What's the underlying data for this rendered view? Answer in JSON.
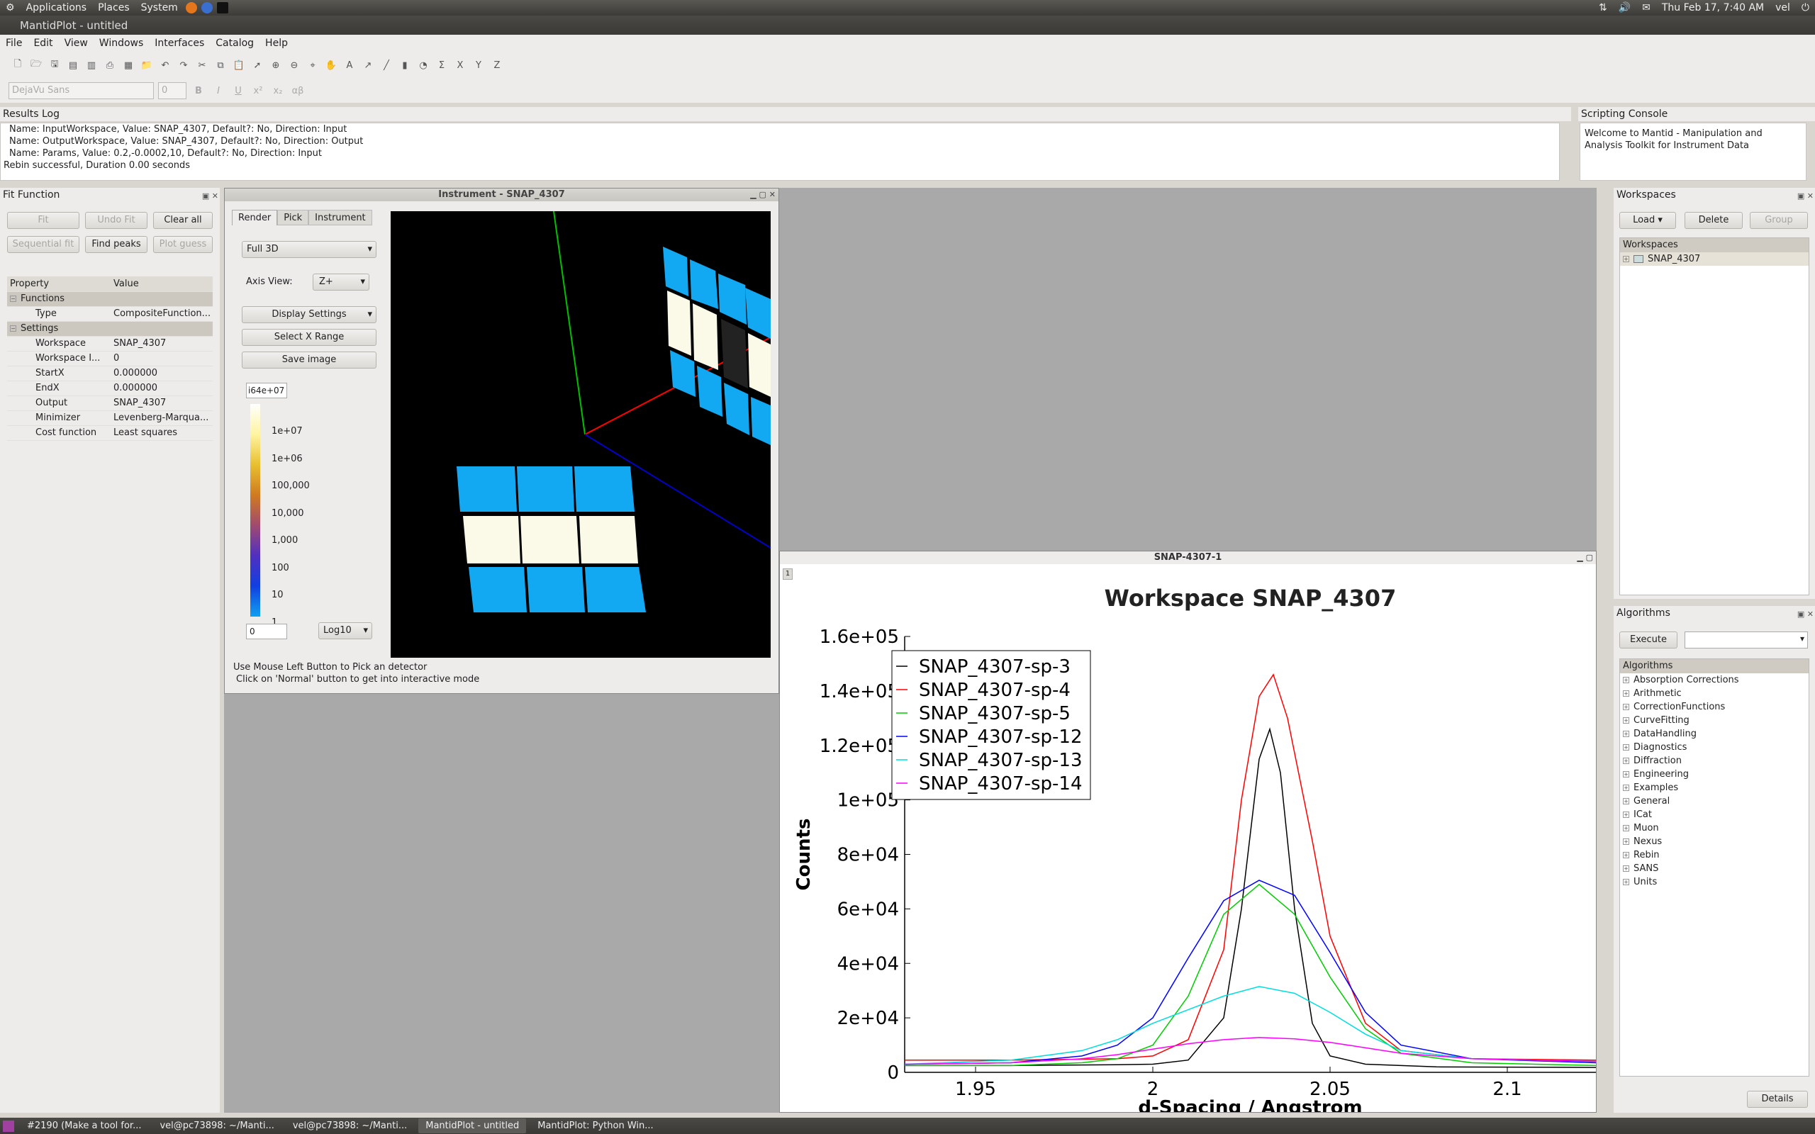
{
  "gnome_panel": {
    "menus": [
      "Applications",
      "Places",
      "System"
    ],
    "datetime": "Thu Feb 17,  7:40 AM",
    "user": "vel"
  },
  "window_title": "MantidPlot - untitled",
  "menubar": [
    "File",
    "Edit",
    "View",
    "Windows",
    "Interfaces",
    "Catalog",
    "Help"
  ],
  "format_toolbar": {
    "font": "DejaVu Sans",
    "size": "0"
  },
  "results_log": {
    "title": "Results Log",
    "lines": [
      "Name: InputWorkspace, Value: SNAP_4307, Default?: No, Direction: Input",
      "Name: OutputWorkspace, Value: SNAP_4307, Default?: No, Direction: Output",
      "Name: Params, Value: 0.2,-0.0002,10, Default?: No, Direction: Input",
      "Rebin successful, Duration 0.00 seconds"
    ]
  },
  "scripting_console": {
    "title": "Scripting Console",
    "text": "Welcome to Mantid - Manipulation and Analysis Toolkit for Instrument Data"
  },
  "fit_function": {
    "title": "Fit Function",
    "buttons": {
      "fit": "Fit",
      "undo_fit": "Undo Fit",
      "clear_all": "Clear all",
      "sequential_fit": "Sequential fit",
      "find_peaks": "Find peaks",
      "plot_guess": "Plot guess"
    },
    "table_headers": [
      "Property",
      "Value"
    ],
    "groups": {
      "functions": "Functions",
      "settings": "Settings"
    },
    "functions_rows": [
      {
        "name": "Type",
        "value": "CompositeFunction..."
      }
    ],
    "settings_rows": [
      {
        "name": "Workspace",
        "value": "SNAP_4307"
      },
      {
        "name": "Workspace I...",
        "value": "0"
      },
      {
        "name": "StartX",
        "value": "0.000000"
      },
      {
        "name": "EndX",
        "value": "0.000000"
      },
      {
        "name": "Output",
        "value": "SNAP_4307"
      },
      {
        "name": "Minimizer",
        "value": "Levenberg-Marqua..."
      },
      {
        "name": "Cost function",
        "value": "Least squares"
      }
    ]
  },
  "instrument_window": {
    "title": "Instrument - SNAP_4307",
    "tabs": [
      "Render",
      "Pick",
      "Instrument"
    ],
    "render_mode": "Full 3D",
    "axis_view_label": "Axis View:",
    "axis_view": "Z+",
    "display_settings": "Display Settings",
    "select_x_range": "Select X Range",
    "save_image": "Save image",
    "color_max": "i64e+07",
    "color_min": "0",
    "scale_type": "Log10",
    "colorbar_ticks": [
      "1e+07",
      "1e+06",
      "100,000",
      "10,000",
      "1,000",
      "100",
      "10",
      "1"
    ],
    "hint1": "Use Mouse Left Button to Pick an detector",
    "hint2": "Click on 'Normal' button to get into interactive mode"
  },
  "plot_window": {
    "title": "SNAP-4307-1",
    "layer": "1"
  },
  "chart_data": {
    "type": "line",
    "title": "Workspace SNAP_4307",
    "xlabel": "d-Spacing / Angstrom",
    "ylabel": "Counts",
    "xlim": [
      1.93,
      2.125
    ],
    "ylim": [
      0,
      160000
    ],
    "x_ticks": [
      1.95,
      2,
      2.05,
      2.1
    ],
    "x_tick_labels": [
      "1.95",
      "2",
      "2.05",
      "2.1"
    ],
    "y_ticks": [
      0,
      20000,
      40000,
      60000,
      80000,
      100000,
      120000,
      140000,
      160000
    ],
    "y_tick_labels": [
      "0",
      "2e+04",
      "4e+04",
      "6e+04",
      "8e+04",
      "1e+05",
      "1.2e+05",
      "1.4e+05",
      "1.6e+05"
    ],
    "legend_position": "top-left",
    "series": [
      {
        "name": "SNAP_4307-sp-3",
        "color": "#000000",
        "x": [
          1.93,
          1.96,
          1.99,
          2.0,
          2.01,
          2.02,
          2.025,
          2.03,
          2.033,
          2.036,
          2.04,
          2.045,
          2.05,
          2.06,
          2.08,
          2.125
        ],
        "y": [
          2500,
          2500,
          2800,
          3000,
          4500,
          20000,
          60000,
          115000,
          126000,
          110000,
          60000,
          18000,
          6000,
          3000,
          2000,
          1800
        ]
      },
      {
        "name": "SNAP_4307-sp-4",
        "color": "#ff0000",
        "x": [
          1.93,
          1.96,
          1.99,
          2.0,
          2.01,
          2.02,
          2.025,
          2.03,
          2.034,
          2.038,
          2.045,
          2.05,
          2.06,
          2.07,
          2.09,
          2.125
        ],
        "y": [
          4500,
          4500,
          5000,
          6000,
          12000,
          45000,
          100000,
          138000,
          146000,
          130000,
          85000,
          50000,
          18000,
          8000,
          5000,
          4500
        ]
      },
      {
        "name": "SNAP_4307-sp-5",
        "color": "#00cc00",
        "x": [
          1.93,
          1.96,
          1.98,
          1.99,
          2.0,
          2.01,
          2.02,
          2.03,
          2.04,
          2.05,
          2.06,
          2.07,
          2.09,
          2.125
        ],
        "y": [
          2500,
          2500,
          3500,
          5000,
          10000,
          28000,
          58000,
          69000,
          58000,
          35000,
          16000,
          7000,
          3500,
          2500
        ]
      },
      {
        "name": "SNAP_4307-sp-12",
        "color": "#0000ff",
        "x": [
          1.93,
          1.96,
          1.98,
          1.99,
          2.0,
          2.01,
          2.02,
          2.03,
          2.04,
          2.05,
          2.06,
          2.07,
          2.09,
          2.125
        ],
        "y": [
          3000,
          3500,
          6000,
          10000,
          20000,
          42000,
          63000,
          70500,
          65000,
          44000,
          22000,
          10000,
          5000,
          3500
        ]
      },
      {
        "name": "SNAP_4307-sp-13",
        "color": "#00dddd",
        "x": [
          1.93,
          1.96,
          1.98,
          1.99,
          2.0,
          2.01,
          2.02,
          2.03,
          2.04,
          2.05,
          2.06,
          2.07,
          2.09,
          2.125
        ],
        "y": [
          3000,
          4500,
          8000,
          12000,
          18000,
          23000,
          28000,
          31500,
          29000,
          22000,
          14000,
          8000,
          5000,
          4000
        ]
      },
      {
        "name": "SNAP_4307-sp-14",
        "color": "#ff00ff",
        "x": [
          1.93,
          1.96,
          1.98,
          1.99,
          2.0,
          2.01,
          2.02,
          2.03,
          2.04,
          2.05,
          2.06,
          2.07,
          2.09,
          2.125
        ],
        "y": [
          3000,
          3500,
          5000,
          6500,
          8500,
          10500,
          12000,
          12800,
          12300,
          11000,
          9000,
          7000,
          5000,
          4000
        ]
      }
    ]
  },
  "workspaces_dock": {
    "title": "Workspaces",
    "buttons": {
      "load": "Load",
      "delete": "Delete",
      "group": "Group"
    },
    "tree_header": "Workspaces",
    "items": [
      "SNAP_4307"
    ]
  },
  "algorithms_dock": {
    "title": "Algorithms",
    "execute": "Execute",
    "tree_header": "Algorithms",
    "items": [
      "Absorption Corrections",
      "Arithmetic",
      "CorrectionFunctions",
      "CurveFitting",
      "DataHandling",
      "Diagnostics",
      "Diffraction",
      "Engineering",
      "Examples",
      "General",
      "ICat",
      "Muon",
      "Nexus",
      "Rebin",
      "SANS",
      "Units"
    ],
    "details": "Details"
  },
  "taskbar": [
    {
      "label": "#2190 (Make a tool for...",
      "active": false
    },
    {
      "label": "vel@pc73898: ~/Manti...",
      "active": false
    },
    {
      "label": "vel@pc73898: ~/Manti...",
      "active": false
    },
    {
      "label": "MantidPlot - untitled",
      "active": true
    },
    {
      "label": "MantidPlot: Python Win...",
      "active": false
    }
  ]
}
